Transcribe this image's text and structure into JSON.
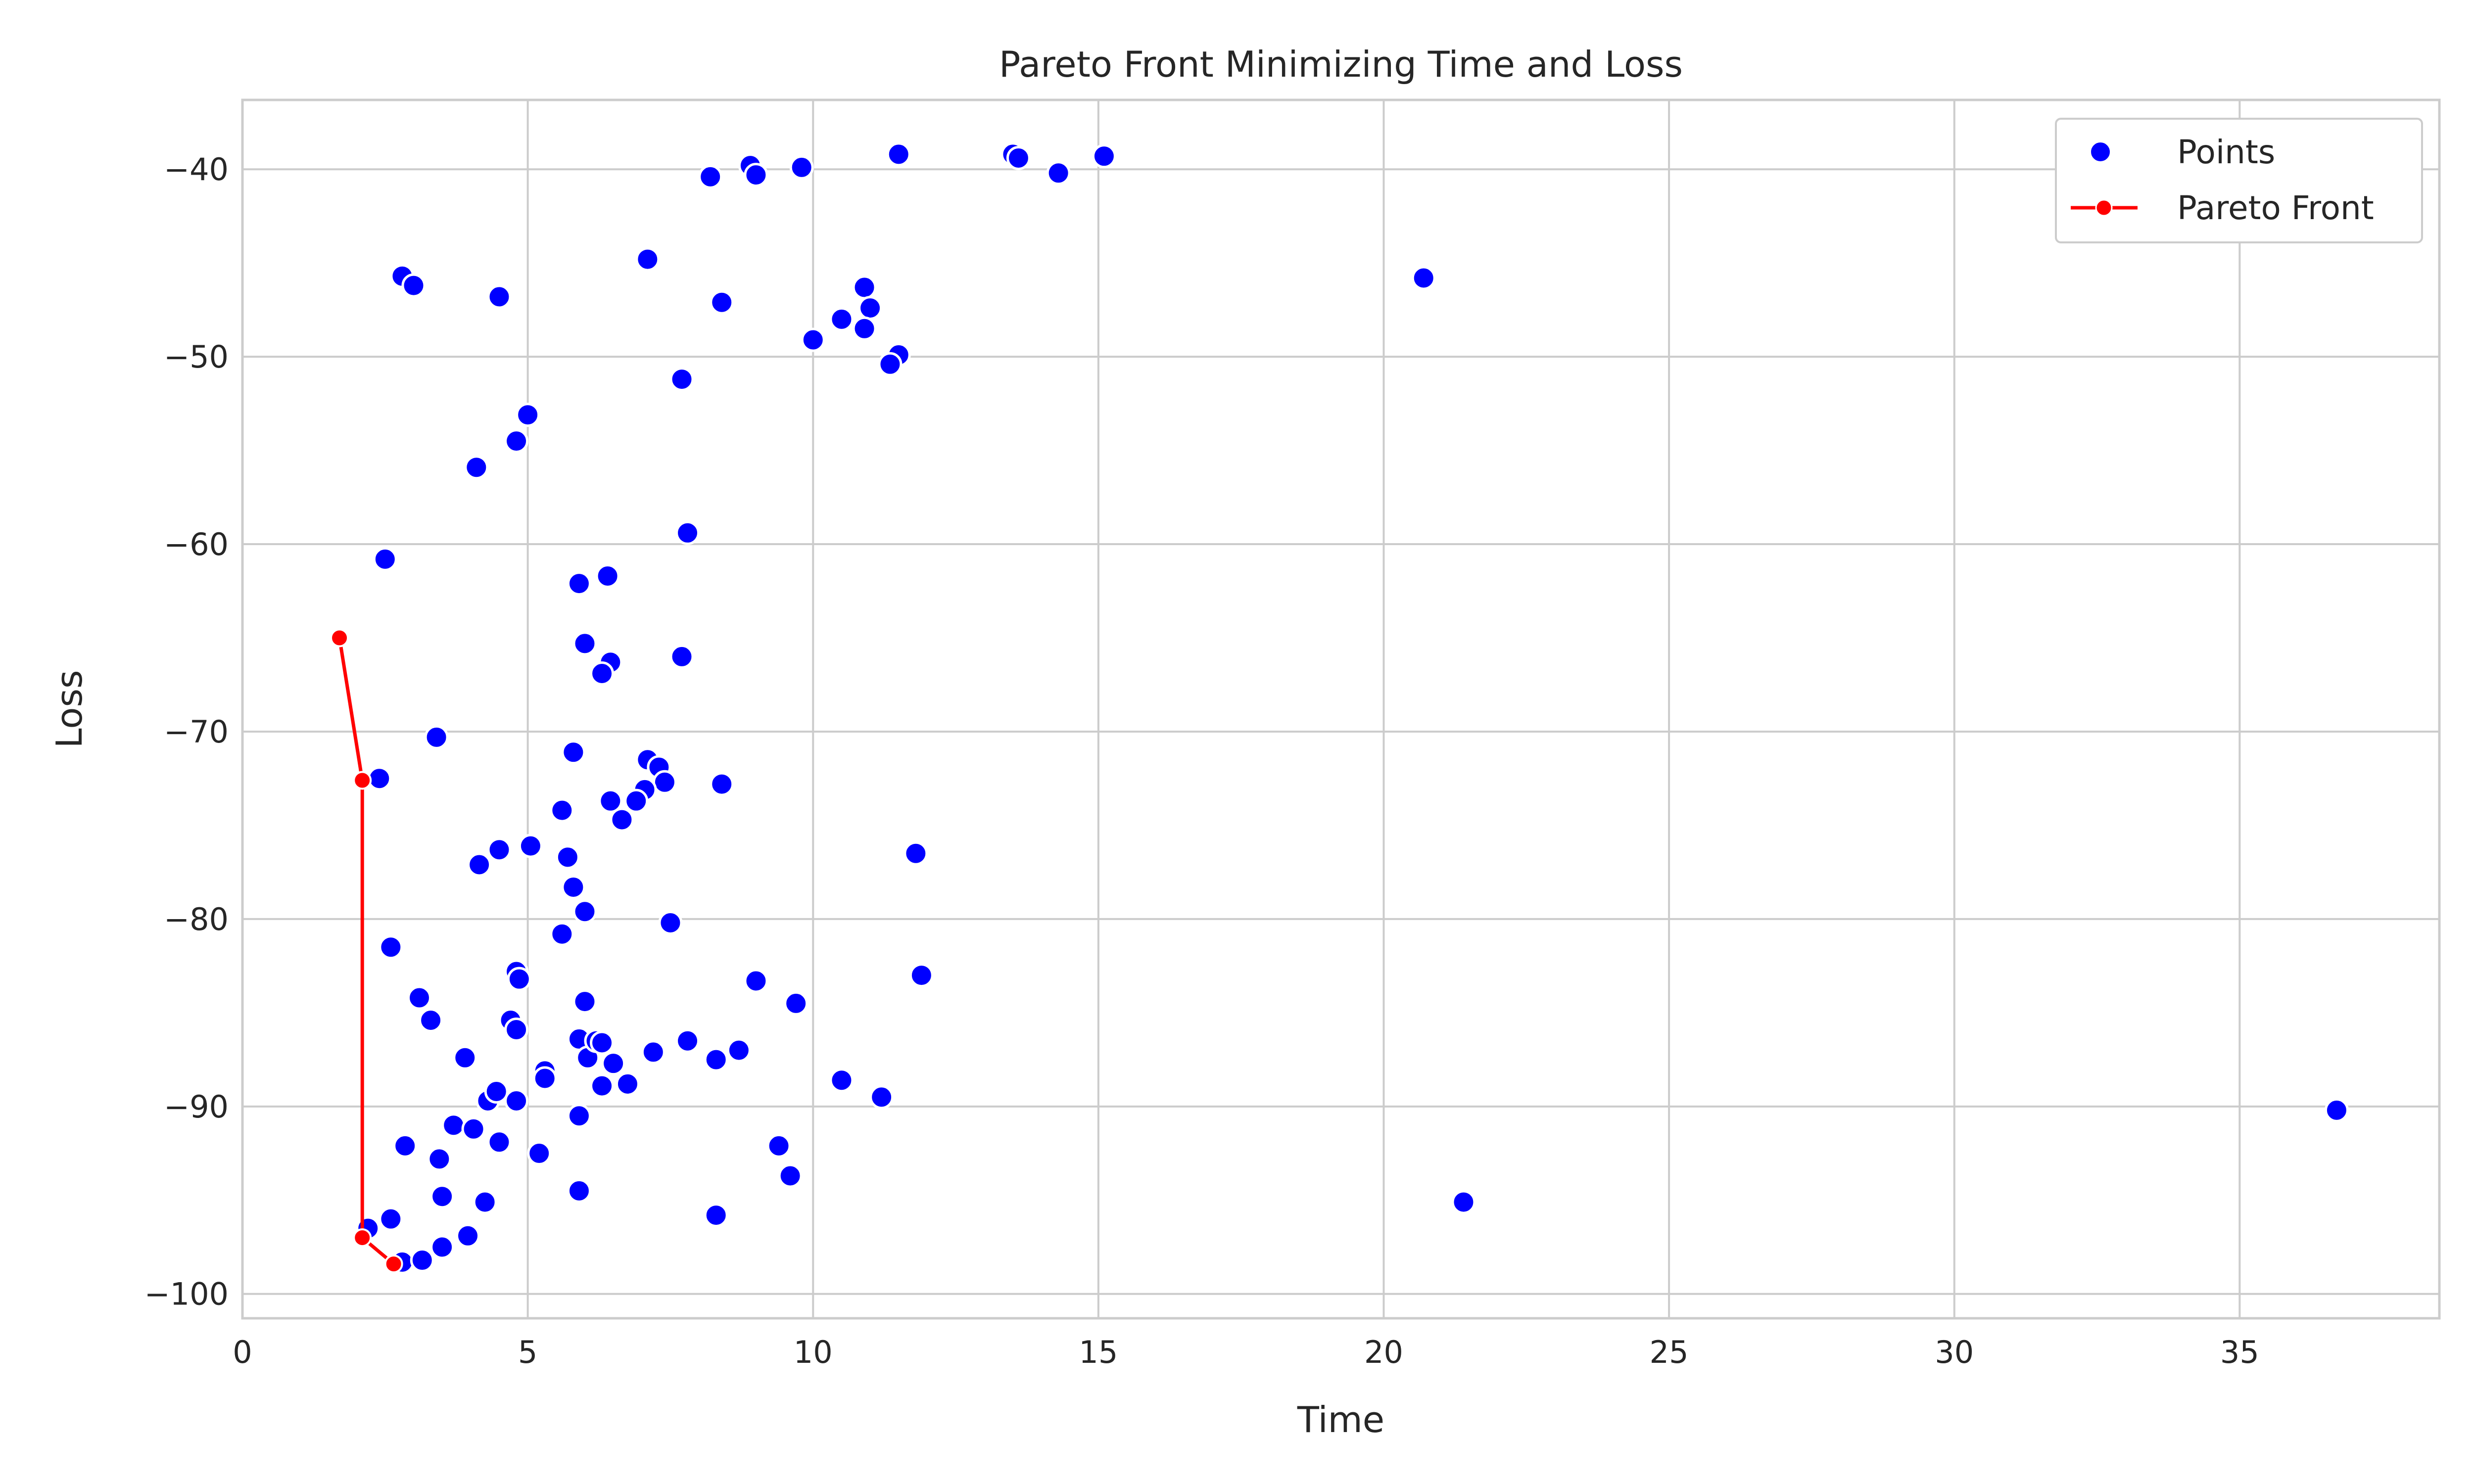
{
  "chart_data": {
    "type": "scatter",
    "title": "Pareto Front Minimizing Time and Loss",
    "xlabel": "Time",
    "ylabel": "Loss",
    "xlim": [
      0,
      38.5
    ],
    "ylim": [
      -101.3,
      -36.3
    ],
    "xticks": [
      0,
      5,
      10,
      15,
      20,
      25,
      30,
      35
    ],
    "yticks": [
      -40,
      -50,
      -60,
      -70,
      -80,
      -90,
      -100
    ],
    "xtick_labels": [
      "0",
      "5",
      "10",
      "15",
      "20",
      "25",
      "30",
      "35"
    ],
    "ytick_labels": [
      "−40",
      "−50",
      "−60",
      "−70",
      "−80",
      "−90",
      "−100"
    ],
    "grid": true,
    "legend_position": "top-right",
    "series": [
      {
        "name": "Points",
        "kind": "scatter",
        "color": "#0000ff",
        "points": [
          [
            8.9,
            -39.8
          ],
          [
            9.0,
            -40.3
          ],
          [
            9.8,
            -39.9
          ],
          [
            8.2,
            -40.4
          ],
          [
            11.5,
            -39.2
          ],
          [
            13.5,
            -39.2
          ],
          [
            13.6,
            -39.4
          ],
          [
            14.3,
            -40.2
          ],
          [
            15.1,
            -39.3
          ],
          [
            7.1,
            -44.8
          ],
          [
            2.8,
            -45.7
          ],
          [
            3.0,
            -46.2
          ],
          [
            4.5,
            -46.8
          ],
          [
            8.4,
            -47.1
          ],
          [
            10.9,
            -46.3
          ],
          [
            11.0,
            -47.4
          ],
          [
            10.5,
            -48.0
          ],
          [
            10.9,
            -48.5
          ],
          [
            10.0,
            -49.1
          ],
          [
            11.5,
            -49.9
          ],
          [
            11.35,
            -50.4
          ],
          [
            20.7,
            -45.8
          ],
          [
            7.7,
            -51.2
          ],
          [
            5.0,
            -53.1
          ],
          [
            4.8,
            -54.5
          ],
          [
            4.1,
            -55.9
          ],
          [
            2.5,
            -60.8
          ],
          [
            7.8,
            -59.4
          ],
          [
            5.9,
            -62.1
          ],
          [
            6.4,
            -61.7
          ],
          [
            6.0,
            -65.3
          ],
          [
            7.7,
            -66.0
          ],
          [
            6.45,
            -66.3
          ],
          [
            6.3,
            -66.9
          ],
          [
            3.4,
            -70.3
          ],
          [
            5.8,
            -71.1
          ],
          [
            7.1,
            -71.5
          ],
          [
            7.3,
            -71.9
          ],
          [
            7.4,
            -72.7
          ],
          [
            7.05,
            -73.1
          ],
          [
            6.9,
            -73.7
          ],
          [
            8.4,
            -72.8
          ],
          [
            2.4,
            -72.5
          ],
          [
            5.6,
            -74.2
          ],
          [
            6.45,
            -73.7
          ],
          [
            6.65,
            -74.7
          ],
          [
            5.05,
            -76.1
          ],
          [
            4.5,
            -76.3
          ],
          [
            4.15,
            -77.1
          ],
          [
            5.7,
            -76.7
          ],
          [
            5.8,
            -78.3
          ],
          [
            6.0,
            -79.6
          ],
          [
            5.6,
            -80.8
          ],
          [
            7.5,
            -80.2
          ],
          [
            11.8,
            -76.5
          ],
          [
            2.6,
            -81.5
          ],
          [
            4.8,
            -82.8
          ],
          [
            4.85,
            -83.2
          ],
          [
            3.1,
            -84.2
          ],
          [
            3.3,
            -85.4
          ],
          [
            4.7,
            -85.4
          ],
          [
            4.8,
            -85.9
          ],
          [
            6.0,
            -84.4
          ],
          [
            9.0,
            -83.3
          ],
          [
            9.7,
            -84.5
          ],
          [
            11.9,
            -83.0
          ],
          [
            3.9,
            -87.4
          ],
          [
            5.9,
            -86.4
          ],
          [
            6.05,
            -87.4
          ],
          [
            6.2,
            -86.5
          ],
          [
            6.3,
            -86.6
          ],
          [
            6.5,
            -87.7
          ],
          [
            7.2,
            -87.1
          ],
          [
            7.8,
            -86.5
          ],
          [
            8.3,
            -87.5
          ],
          [
            8.7,
            -87.0
          ],
          [
            5.3,
            -88.1
          ],
          [
            5.3,
            -88.5
          ],
          [
            6.3,
            -88.9
          ],
          [
            6.75,
            -88.8
          ],
          [
            10.5,
            -88.6
          ],
          [
            11.2,
            -89.5
          ],
          [
            4.3,
            -89.7
          ],
          [
            4.45,
            -89.2
          ],
          [
            4.8,
            -89.7
          ],
          [
            3.7,
            -91.0
          ],
          [
            4.05,
            -91.2
          ],
          [
            4.5,
            -91.9
          ],
          [
            2.85,
            -92.1
          ],
          [
            3.45,
            -92.8
          ],
          [
            5.2,
            -92.5
          ],
          [
            5.9,
            -90.5
          ],
          [
            9.4,
            -92.1
          ],
          [
            9.6,
            -93.7
          ],
          [
            3.5,
            -94.8
          ],
          [
            4.25,
            -95.1
          ],
          [
            5.9,
            -94.5
          ],
          [
            8.3,
            -95.8
          ],
          [
            2.2,
            -96.5
          ],
          [
            2.6,
            -96.0
          ],
          [
            3.95,
            -96.9
          ],
          [
            3.5,
            -97.5
          ],
          [
            2.8,
            -98.3
          ],
          [
            3.15,
            -98.2
          ],
          [
            21.4,
            -95.1
          ],
          [
            36.7,
            -90.2
          ]
        ]
      },
      {
        "name": "Pareto Front",
        "kind": "line",
        "color": "#ff0000",
        "points": [
          [
            1.7,
            -65.0
          ],
          [
            2.1,
            -72.6
          ],
          [
            2.1,
            -97.0
          ],
          [
            2.65,
            -98.4
          ]
        ]
      }
    ]
  }
}
